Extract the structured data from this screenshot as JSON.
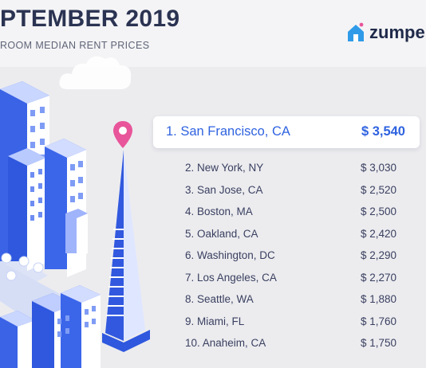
{
  "header": {
    "title": "PTEMBER 2019",
    "subtitle": "ROOM MEDIAN RENT PRICES"
  },
  "logo": {
    "text": "zumper",
    "icon": "house-icon"
  },
  "top_city": {
    "label": "1. San Francisco, CA",
    "price": "$ 3,540"
  },
  "rankings": [
    {
      "label": "2. New York, NY",
      "price": "$ 3,030"
    },
    {
      "label": "3. San Jose, CA",
      "price": "$ 2,520"
    },
    {
      "label": "4. Boston, MA",
      "price": "$ 2,500"
    },
    {
      "label": "5. Oakland, CA",
      "price": "$ 2,420"
    },
    {
      "label": "6. Washington, DC",
      "price": "$ 2,290"
    },
    {
      "label": "7. Los Angeles, CA",
      "price": "$ 2,270"
    },
    {
      "label": "8. Seattle, WA",
      "price": "$ 1,880"
    },
    {
      "label": "9. Miami, FL",
      "price": "$ 1,760"
    },
    {
      "label": "10. Anaheim, CA",
      "price": "$ 1,750"
    }
  ],
  "colors": {
    "accent": "#2f63e0",
    "pin": "#e8559a",
    "dark": "#2b3352"
  }
}
